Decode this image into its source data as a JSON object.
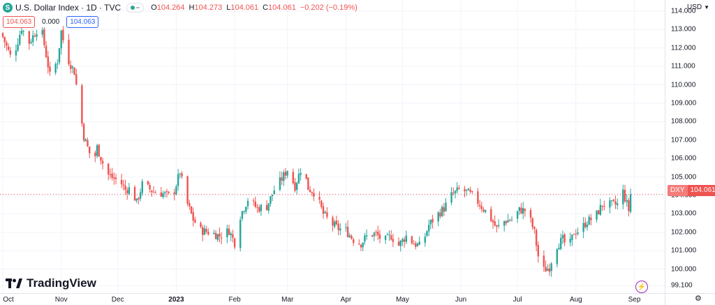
{
  "header": {
    "logo": "S",
    "title": "U.S. Dollar Index · 1D · TVC",
    "ohlc": [
      {
        "label": "O",
        "value": "104.264"
      },
      {
        "label": "H",
        "value": "104.273"
      },
      {
        "label": "L",
        "value": "104.061"
      },
      {
        "label": "C",
        "value": "104.061"
      }
    ],
    "change": "−0.202 (−0.19%)"
  },
  "badges": {
    "sell": "104.063",
    "spread": "0.000",
    "buy": "104.063"
  },
  "currency": "USD",
  "price_tag": {
    "symbol": "DXY",
    "value": "104.061"
  },
  "branding": "TradingView",
  "colors": {
    "up": "#26a69a",
    "down": "#ef5350",
    "grid": "#f0f3fa",
    "accent": "#2962ff"
  },
  "chart_data": {
    "type": "candlestick",
    "ylim": [
      98.7,
      114.6
    ],
    "yticks": [
      99.1,
      100,
      101,
      102,
      103,
      104,
      105,
      106,
      107,
      108,
      109,
      110,
      111,
      112,
      113,
      114
    ],
    "ytick_labels": [
      "99.100",
      "100.000",
      "101.000",
      "102.000",
      "103.000",
      "104.000",
      "105.000",
      "106.000",
      "107.000",
      "108.000",
      "109.000",
      "110.000",
      "111.000",
      "112.000",
      "113.000",
      "114.000"
    ],
    "xtick_labels": [
      {
        "label": "Oct",
        "day": 0
      },
      {
        "label": "Nov",
        "day": 31
      },
      {
        "label": "Dec",
        "day": 61
      },
      {
        "label": "2023",
        "day": 92,
        "bold": true
      },
      {
        "label": "Feb",
        "day": 123
      },
      {
        "label": "Mar",
        "day": 151
      },
      {
        "label": "Apr",
        "day": 182
      },
      {
        "label": "May",
        "day": 212
      },
      {
        "label": "Jun",
        "day": 243
      },
      {
        "label": "Jul",
        "day": 273
      },
      {
        "label": "Aug",
        "day": 304
      },
      {
        "label": "Sep",
        "day": 335
      }
    ],
    "last_close": 104.061,
    "anchors": [
      [
        0,
        112.6
      ],
      [
        5,
        111.3
      ],
      [
        10,
        113.1
      ],
      [
        14,
        112.3
      ],
      [
        20,
        113.3
      ],
      [
        25,
        110.5
      ],
      [
        29,
        111.3
      ],
      [
        31,
        112.9
      ],
      [
        34,
        111.5
      ],
      [
        38,
        110.7
      ],
      [
        43,
        107.2
      ],
      [
        48,
        105.7
      ],
      [
        50,
        106.6
      ],
      [
        55,
        105.2
      ],
      [
        59,
        104.9
      ],
      [
        62,
        104.8
      ],
      [
        65,
        104.3
      ],
      [
        68,
        104.4
      ],
      [
        71,
        103.6
      ],
      [
        74,
        104.6
      ],
      [
        80,
        104.2
      ],
      [
        85,
        104.1
      ],
      [
        90,
        103.9
      ],
      [
        94,
        105.3
      ],
      [
        97,
        103.8
      ],
      [
        101,
        102.7
      ],
      [
        105,
        102.1
      ],
      [
        110,
        102.0
      ],
      [
        115,
        101.8
      ],
      [
        120,
        102.1
      ],
      [
        124,
        101.2
      ],
      [
        126,
        102.9
      ],
      [
        130,
        103.8
      ],
      [
        135,
        103.3
      ],
      [
        140,
        103.4
      ],
      [
        144,
        104.3
      ],
      [
        148,
        104.9
      ],
      [
        151,
        105.4
      ],
      [
        155,
        104.5
      ],
      [
        159,
        105.7
      ],
      [
        162,
        104.4
      ],
      [
        166,
        104.1
      ],
      [
        170,
        103.0
      ],
      [
        174,
        102.5
      ],
      [
        178,
        102.2
      ],
      [
        182,
        102.1
      ],
      [
        186,
        101.6
      ],
      [
        190,
        101.4
      ],
      [
        194,
        101.9
      ],
      [
        198,
        101.9
      ],
      [
        202,
        101.5
      ],
      [
        206,
        101.8
      ],
      [
        210,
        101.3
      ],
      [
        214,
        101.8
      ],
      [
        218,
        101.4
      ],
      [
        222,
        101.2
      ],
      [
        226,
        102.4
      ],
      [
        230,
        102.9
      ],
      [
        234,
        103.3
      ],
      [
        238,
        104.0
      ],
      [
        242,
        104.3
      ],
      [
        246,
        104.2
      ],
      [
        250,
        103.9
      ],
      [
        254,
        103.4
      ],
      [
        258,
        102.9
      ],
      [
        262,
        102.2
      ],
      [
        266,
        102.6
      ],
      [
        270,
        102.7
      ],
      [
        274,
        103.2
      ],
      [
        278,
        103.2
      ],
      [
        282,
        102.0
      ],
      [
        284,
        100.7
      ],
      [
        286,
        99.9
      ],
      [
        290,
        100.1
      ],
      [
        293,
        101.2
      ],
      [
        297,
        101.6
      ],
      [
        300,
        101.1
      ],
      [
        303,
        102.0
      ],
      [
        306,
        102.1
      ],
      [
        310,
        102.6
      ],
      [
        314,
        102.8
      ],
      [
        318,
        103.5
      ],
      [
        322,
        103.5
      ],
      [
        326,
        103.5
      ],
      [
        329,
        104.2
      ],
      [
        332,
        103.2
      ],
      [
        335,
        104.1
      ]
    ]
  }
}
